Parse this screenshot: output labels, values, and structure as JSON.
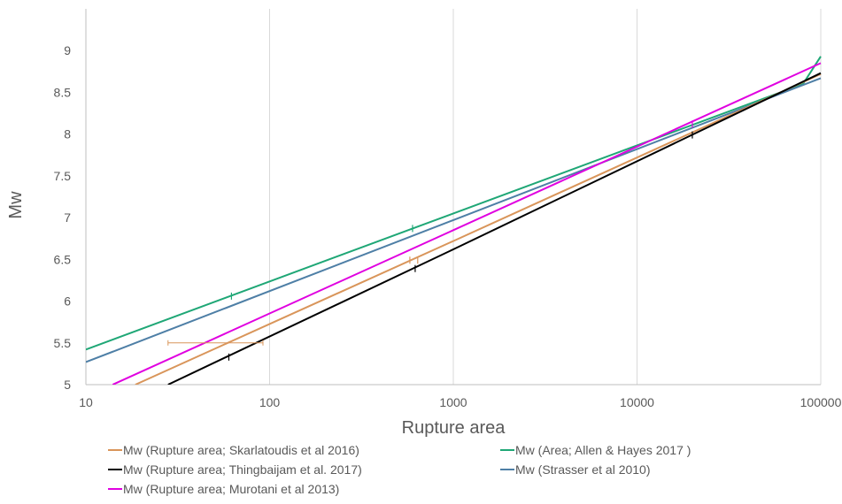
{
  "chart_data": {
    "type": "line",
    "title": "",
    "xlabel": "Rupture area",
    "ylabel": "Mw",
    "x_scale": "log",
    "xlim": [
      10,
      100000
    ],
    "ylim": [
      5,
      9.5
    ],
    "x_ticks": [
      "10",
      "100",
      "1000",
      "10000",
      "100000"
    ],
    "y_ticks": [
      "5",
      "5.5",
      "6",
      "6.5",
      "7",
      "7.5",
      "8",
      "8.5",
      "9"
    ],
    "grid": "vertical",
    "legend_position": "bottom",
    "series": [
      {
        "name": "Mw (Rupture area; Skarlatoudis et al 2016)",
        "color": "#d9955a",
        "x": [
          18.6,
          1000,
          100000
        ],
        "y": [
          5.0,
          6.72,
          8.72
        ]
      },
      {
        "name": "Mw (Area; Allen & Hayes 2017 )",
        "color": "#1fa776",
        "x": [
          10,
          1000,
          80000,
          100000
        ],
        "y": [
          5.42,
          7.05,
          8.6,
          8.93
        ]
      },
      {
        "name": "Mw (Rupture area; Thingbaijam et al. 2017)",
        "color": "#000000",
        "x": [
          28,
          1000,
          100000
        ],
        "y": [
          5.0,
          6.62,
          8.73
        ]
      },
      {
        "name": "Mw (Strasser et al 2010)",
        "color": "#4e7fa6",
        "x": [
          10,
          1000,
          100000
        ],
        "y": [
          5.27,
          6.97,
          8.67
        ]
      },
      {
        "name": "Mw (Rupture area; Murotani et al 2013)",
        "color": "#e000e0",
        "x": [
          14,
          1000,
          100000
        ],
        "y": [
          5.0,
          6.85,
          8.85
        ]
      }
    ],
    "markers": [
      {
        "series": "Mw (Area; Allen & Hayes 2017 )",
        "x": [
          62,
          600
        ],
        "y": [
          6.06,
          6.87
        ]
      },
      {
        "series": "Mw (Rupture area; Thingbaijam et al. 2017)",
        "x": [
          60,
          620,
          20000
        ],
        "y": [
          5.33,
          6.39,
          7.99
        ]
      },
      {
        "series": "Mw (Rupture area; Skarlatoudis et al 2016)",
        "x": [
          580,
          640
        ],
        "y": [
          6.49,
          6.49
        ]
      },
      {
        "series": "Mw (Rupture area; Murotani et al 2013)",
        "x": [
          20000
        ],
        "y": [
          8.12
        ]
      }
    ],
    "error_bar": {
      "series": "Mw (Rupture area; Skarlatoudis et al 2016)",
      "x_low": 28,
      "x_high": 92,
      "y": 5.5
    }
  }
}
